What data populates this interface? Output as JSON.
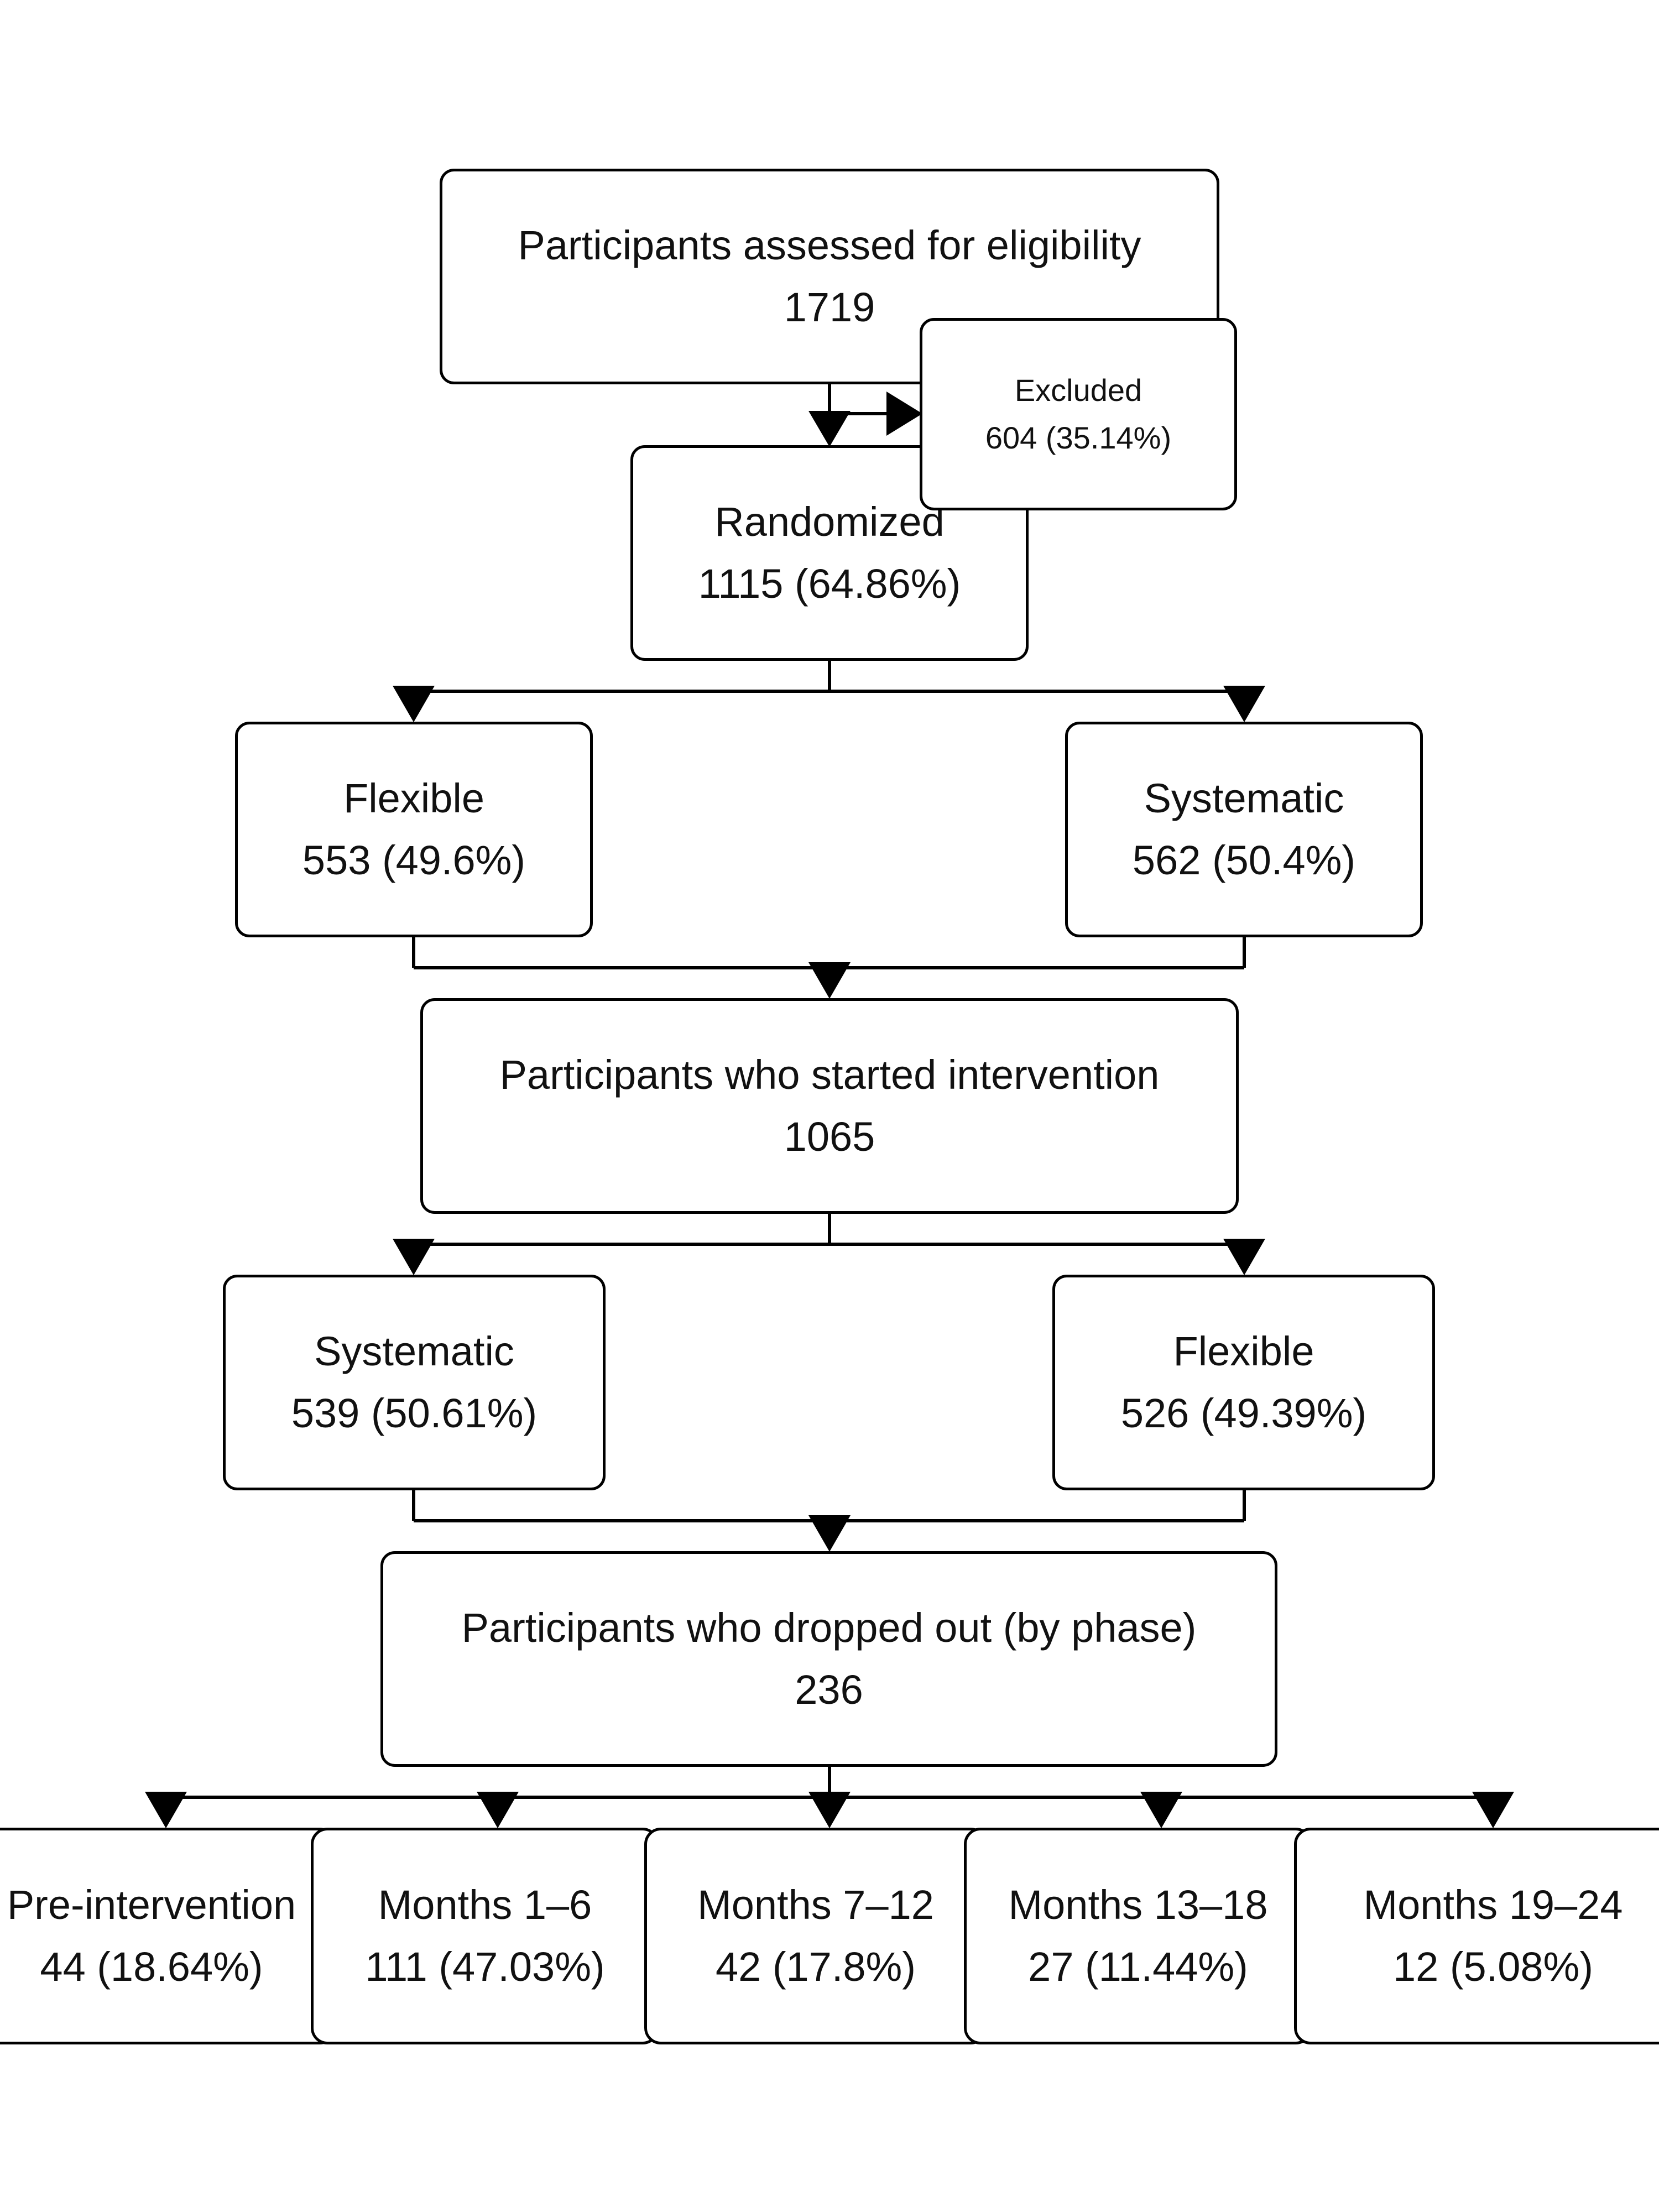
{
  "diagram": {
    "assessed": {
      "label": "Participants assessed for eligibility",
      "value": "1719"
    },
    "excluded": {
      "label": "Excluded",
      "value": "604 (35.14%)"
    },
    "randomized": {
      "label": "Randomized",
      "value": "1115 (64.86%)"
    },
    "arm1_flexible": {
      "label": "Flexible",
      "value": "553 (49.6%)"
    },
    "arm1_systematic": {
      "label": "Systematic",
      "value": "562 (50.4%)"
    },
    "started": {
      "label": "Participants who started intervention",
      "value": "1065"
    },
    "arm2_systematic": {
      "label": "Systematic",
      "value": "539 (50.61%)"
    },
    "arm2_flexible": {
      "label": "Flexible",
      "value": "526 (49.39%)"
    },
    "dropped": {
      "label": "Participants who dropped out (by phase)",
      "value": "236"
    },
    "phases": [
      {
        "label": "Pre-intervention",
        "value": "44 (18.64%)"
      },
      {
        "label": "Months 1–6",
        "value": "111 (47.03%)"
      },
      {
        "label": "Months 7–12",
        "value": "42 (17.8%)"
      },
      {
        "label": "Months 13–18",
        "value": "27 (11.44%)"
      },
      {
        "label": "Months 19–24",
        "value": "12 (5.08%)"
      }
    ]
  }
}
